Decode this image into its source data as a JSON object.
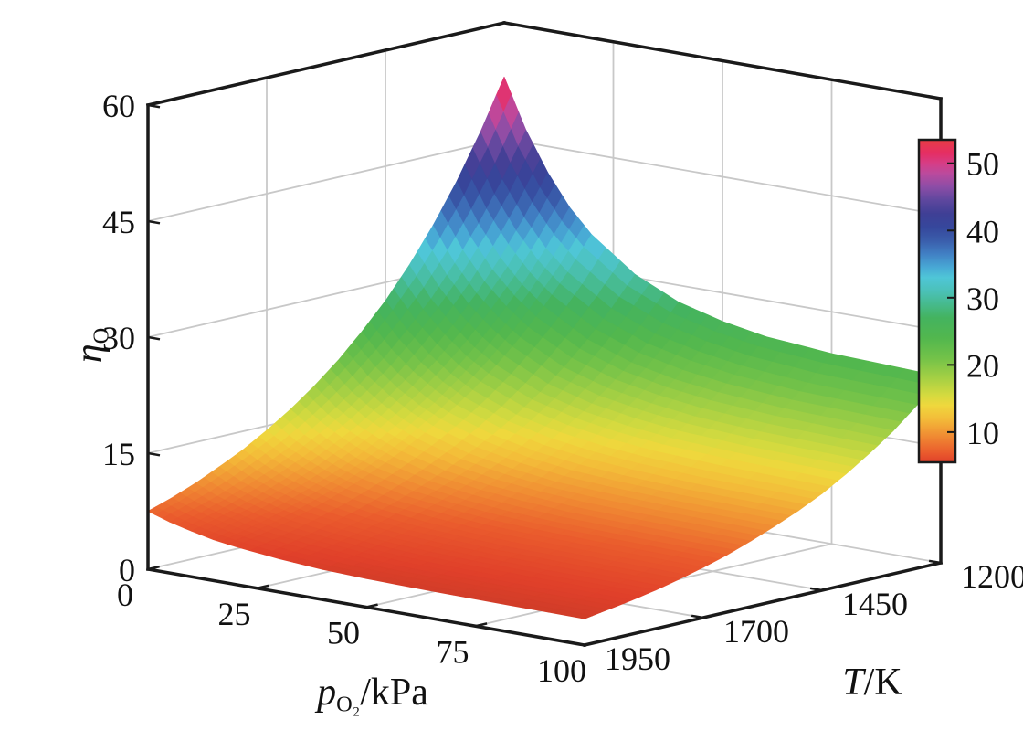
{
  "figure": {
    "background": "#ffffff",
    "zlabel": {
      "main": "η",
      "sub": "O"
    },
    "xlabel": {
      "main": "p",
      "sub": "O₂",
      "rest": "/kPa"
    },
    "ylabel": {
      "main": "T",
      "rest": "/K"
    }
  },
  "chart_data": {
    "type": "3d-surface",
    "title": "",
    "x": {
      "label": "p_O2/kPa",
      "ticks": [
        0,
        25,
        50,
        75,
        100
      ],
      "range": [
        0,
        100
      ]
    },
    "y": {
      "label": "T/K",
      "ticks": [
        1950,
        1700,
        1450,
        1200
      ],
      "range": [
        1200,
        1950
      ],
      "direction": "reversed-toward-back"
    },
    "z": {
      "label": "eta_O",
      "ticks": [
        0,
        15,
        30,
        45,
        60
      ],
      "range": [
        0,
        60
      ]
    },
    "grid": "on",
    "colorbar": {
      "position": "right",
      "ticks": [
        10,
        20,
        30,
        40,
        50
      ],
      "range": [
        5.5,
        53.5
      ]
    },
    "surface": {
      "p_kPa": [
        0,
        5,
        10,
        15,
        20,
        30,
        40,
        50,
        60,
        75,
        100
      ],
      "T_K": [
        1950,
        1900,
        1850,
        1800,
        1750,
        1700,
        1650,
        1600,
        1550,
        1500,
        1450,
        1400,
        1350,
        1300,
        1250,
        1200
      ],
      "eta_O": [
        [
          7.5,
          6.6,
          5.9,
          5.3,
          4.9,
          4.3,
          3.9,
          3.7,
          3.6,
          3.5,
          3.4
        ],
        [
          8.5,
          7.5,
          6.7,
          6.1,
          5.6,
          4.9,
          4.5,
          4.2,
          4.1,
          4.0,
          3.9
        ],
        [
          9.7,
          8.5,
          7.6,
          6.9,
          6.3,
          5.6,
          5.1,
          4.8,
          4.6,
          4.5,
          4.4
        ],
        [
          11.1,
          9.7,
          8.7,
          7.9,
          7.2,
          6.4,
          5.8,
          5.5,
          5.3,
          5.1,
          5.0
        ],
        [
          12.6,
          11.1,
          9.9,
          9.0,
          8.2,
          7.2,
          6.6,
          6.3,
          6.0,
          5.9,
          5.7
        ],
        [
          14.4,
          12.6,
          11.3,
          10.2,
          9.4,
          8.2,
          7.6,
          7.1,
          6.9,
          6.7,
          6.5
        ],
        [
          16.4,
          14.4,
          12.9,
          11.6,
          10.7,
          9.4,
          8.6,
          8.1,
          7.8,
          7.6,
          7.4
        ],
        [
          18.7,
          16.4,
          14.6,
          13.3,
          12.2,
          10.7,
          9.8,
          9.3,
          8.9,
          8.7,
          8.5
        ],
        [
          21.3,
          18.7,
          16.7,
          15.1,
          13.9,
          12.2,
          11.2,
          10.5,
          10.2,
          9.9,
          9.7
        ],
        [
          24.3,
          21.3,
          19.0,
          17.2,
          15.8,
          13.9,
          12.7,
          12.0,
          11.6,
          11.2,
          11.0
        ],
        [
          27.6,
          24.3,
          21.7,
          19.6,
          18.0,
          15.8,
          14.5,
          13.7,
          13.2,
          12.8,
          12.5
        ],
        [
          31.5,
          27.6,
          24.7,
          22.3,
          20.5,
          18.0,
          16.5,
          15.6,
          15.0,
          14.6,
          14.3
        ],
        [
          35.9,
          31.5,
          28.1,
          25.5,
          23.4,
          20.5,
          18.8,
          17.8,
          17.1,
          16.6,
          16.3
        ],
        [
          40.9,
          35.9,
          32.0,
          29.0,
          26.7,
          23.4,
          21.4,
          20.2,
          19.5,
          18.9,
          18.5
        ],
        [
          46.6,
          40.9,
          36.5,
          33.0,
          30.4,
          26.7,
          24.4,
          23.1,
          22.2,
          21.5,
          21.1
        ],
        [
          53.0,
          46.6,
          41.6,
          37.6,
          34.6,
          30.4,
          27.8,
          26.3,
          25.3,
          24.6,
          24.1
        ]
      ]
    },
    "colormap": [
      [
        2.6,
        "#c43a27"
      ],
      [
        4.5,
        "#e0402a"
      ],
      [
        7.0,
        "#ea5c2d"
      ],
      [
        9.5,
        "#f08c33"
      ],
      [
        12.0,
        "#f3bc39"
      ],
      [
        14.0,
        "#efd83d"
      ],
      [
        15.5,
        "#d5da3f"
      ],
      [
        18.0,
        "#a6d044"
      ],
      [
        21.0,
        "#73c249"
      ],
      [
        24.0,
        "#52b74e"
      ],
      [
        27.0,
        "#44b35f"
      ],
      [
        29.0,
        "#46ba8c"
      ],
      [
        31.0,
        "#4bc1b8"
      ],
      [
        33.0,
        "#4fc6d7"
      ],
      [
        34.5,
        "#48a9d5"
      ],
      [
        36.5,
        "#4180c4"
      ],
      [
        38.5,
        "#3a5dab"
      ],
      [
        40.5,
        "#36479c"
      ],
      [
        42.5,
        "#3f3f95"
      ],
      [
        44.5,
        "#5e479e"
      ],
      [
        46.5,
        "#8c4da6"
      ],
      [
        48.5,
        "#bb4a9d"
      ],
      [
        50.0,
        "#d63d86"
      ],
      [
        51.5,
        "#e52e64"
      ],
      [
        53.5,
        "#e73c45"
      ]
    ],
    "colors": {
      "grid": "#c8c8c8",
      "frame": "#1a1a1a",
      "text": "#111111"
    }
  }
}
